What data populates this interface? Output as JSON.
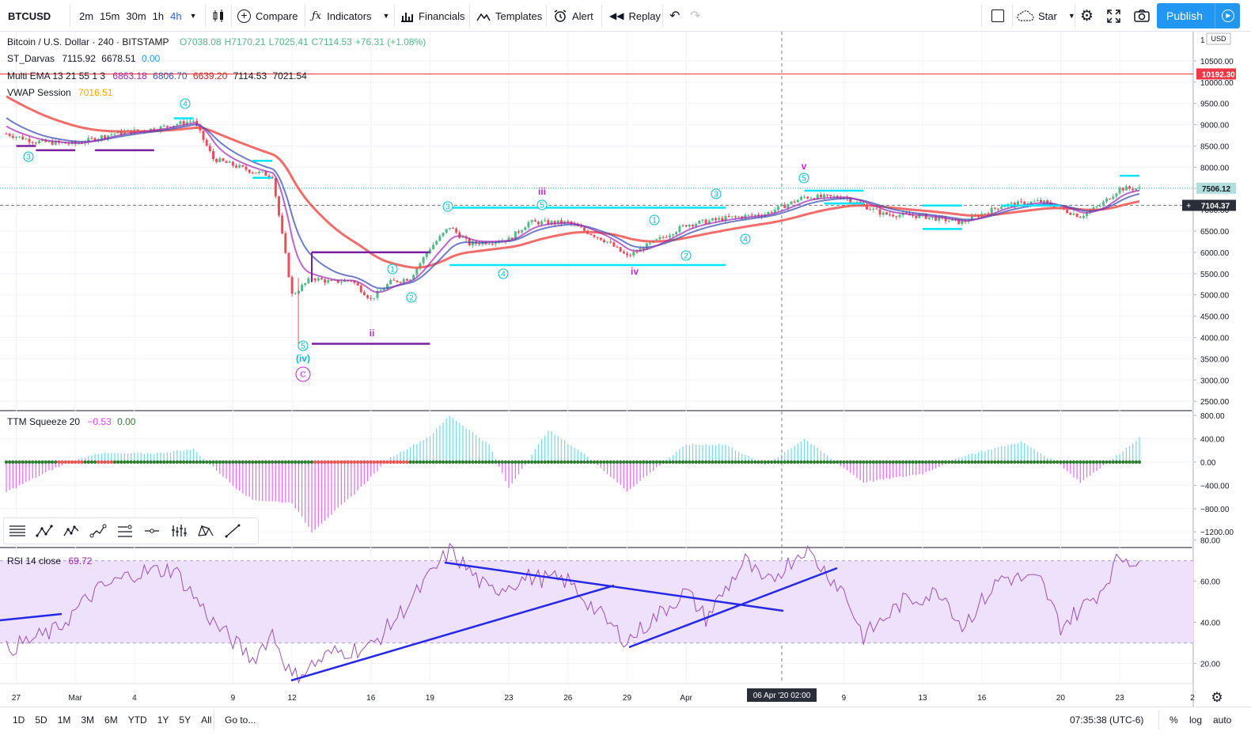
{
  "toolbar": {
    "symbol": "BTCUSD",
    "timeframes": [
      "2m",
      "15m",
      "30m",
      "1h",
      "4h"
    ],
    "active_timeframe": "4h",
    "compare_label": "Compare",
    "indicators_label": "Indicators",
    "financials_label": "Financials",
    "templates_label": "Templates",
    "alert_label": "Alert",
    "replay_label": "Replay",
    "star_label": "Star",
    "publish_label": "Publish"
  },
  "legend": {
    "title": "Bitcoin / U.S. Dollar · 240 · BITSTAMP",
    "open": "O7038.08",
    "high": "H7170.21",
    "low": "L7025.41",
    "close": "C7114.53",
    "change": "+76.31 (+1.08%)",
    "darvas_name": "ST_Darvas",
    "darvas_v1": "7115.92",
    "darvas_v2": "6678.51",
    "darvas_v3": "0.00",
    "ema_name": "Multi EMA 13 21 55 1 3",
    "ema_v1": "6863.18",
    "ema_v2": "6806.70",
    "ema_v3": "6639.20",
    "ema_v4": "7114.53",
    "ema_v5": "7021.54",
    "vwap_name": "VWAP Session",
    "vwap_v": "7016.51",
    "ttm_name": "TTM Squeeze 20",
    "ttm_v1": "−0.53",
    "ttm_v2": "0.00",
    "rsi_name": "RSI 14 close",
    "rsi_v": "69.72"
  },
  "price_axis": {
    "currency": "USD",
    "ticks": [
      "1",
      "10500.00",
      "10000.00",
      "9500.00",
      "9000.00",
      "8500.00",
      "8000.00",
      "7500.00",
      "7000.00",
      "6500.00",
      "6000.00",
      "5500.00",
      "5000.00",
      "4500.00",
      "4000.00",
      "3500.00",
      "3000.00",
      "2500.00"
    ],
    "label_red": "10192.30",
    "label_green": "7506.12",
    "label_current": "7104.37"
  },
  "ttm_axis": {
    "ticks": [
      "800.00",
      "400.00",
      "0.00",
      "−400.00",
      "−800.00",
      "−1200.00"
    ]
  },
  "rsi_axis": {
    "ticks": [
      "80.00",
      "60.00",
      "40.00",
      "20.00"
    ]
  },
  "time_axis": {
    "ticks": [
      "27",
      "Mar",
      "4",
      "9",
      "12",
      "16",
      "19",
      "23",
      "26",
      "29",
      "Apr",
      "9",
      "13",
      "16",
      "20",
      "23",
      "2"
    ],
    "crosshair_label": "06 Apr '20   02:00"
  },
  "wave_labels": {
    "w3a": "3",
    "w4a": "4",
    "wiv": "(iv)",
    "w5a": "5",
    "wC": "C",
    "wii": "ii",
    "w1b": "1",
    "w2b": "2",
    "w3b": "3",
    "w4b": "4",
    "w5b": "5",
    "wiii": "iii",
    "w1c": "1",
    "w2c": "2",
    "w3c": "3",
    "w4c": "4",
    "w5c": "5",
    "wiv2": "iv",
    "wv": "v"
  },
  "bottom": {
    "ranges": [
      "1D",
      "5D",
      "1M",
      "3M",
      "6M",
      "YTD",
      "1Y",
      "5Y",
      "All"
    ],
    "goto_label": "Go to...",
    "clock": "07:35:38 (UTC-6)",
    "pct_label": "%",
    "log_label": "log",
    "auto_label": "auto"
  },
  "colors": {
    "up": "#53b987",
    "down": "#eb4d5c",
    "accent": "#2196f3",
    "ema13": "#9c27b0",
    "ema21": "#3f51b5",
    "ema55": "#ef5350",
    "cyan": "#00e5ff",
    "purple": "#7b1fa2",
    "rsi": "#9c4fb5",
    "rsiband": "#ede1fb",
    "trendline": "#2727e6"
  },
  "chart_data": [
    {
      "type": "candlestick",
      "title": "Bitcoin / U.S. Dollar · 240 · BITSTAMP",
      "ylim": [
        2300,
        10900
      ],
      "x_range": [
        "2020-02-26",
        "2020-04-24"
      ],
      "series": [
        {
          "name": "Price (approx. close path)",
          "points": [
            [
              "2020-02-26",
              8850
            ],
            [
              "2020-02-28",
              8600
            ],
            [
              "2020-03-01",
              8550
            ],
            [
              "2020-03-03",
              8800
            ],
            [
              "2020-03-05",
              8900
            ],
            [
              "2020-03-07",
              9100
            ],
            [
              "2020-03-08",
              8200
            ],
            [
              "2020-03-10",
              7900
            ],
            [
              "2020-03-11",
              7800
            ],
            [
              "2020-03-12",
              5000
            ],
            [
              "2020-03-13",
              5400
            ],
            [
              "2020-03-14",
              5300
            ],
            [
              "2020-03-15",
              5350
            ],
            [
              "2020-03-16",
              4900
            ],
            [
              "2020-03-17",
              5300
            ],
            [
              "2020-03-18",
              5400
            ],
            [
              "2020-03-19",
              6100
            ],
            [
              "2020-03-20",
              6600
            ],
            [
              "2020-03-21",
              6200
            ],
            [
              "2020-03-23",
              6300
            ],
            [
              "2020-03-24",
              6700
            ],
            [
              "2020-03-26",
              6700
            ],
            [
              "2020-03-28",
              6250
            ],
            [
              "2020-03-29",
              5900
            ],
            [
              "2020-03-31",
              6400
            ],
            [
              "2020-04-01",
              6650
            ],
            [
              "2020-04-03",
              6800
            ],
            [
              "2020-04-05",
              6900
            ],
            [
              "2020-04-07",
              7300
            ],
            [
              "2020-04-09",
              7300
            ],
            [
              "2020-04-11",
              6900
            ],
            [
              "2020-04-13",
              6850
            ],
            [
              "2020-04-15",
              6700
            ],
            [
              "2020-04-17",
              7100
            ],
            [
              "2020-04-19",
              7200
            ],
            [
              "2020-04-21",
              6850
            ],
            [
              "2020-04-22",
              7100
            ],
            [
              "2020-04-23",
              7500
            ],
            [
              "2020-04-24",
              7500
            ]
          ]
        },
        {
          "name": "Multi EMA",
          "values": [
            6863.18,
            6806.7,
            6639.2
          ]
        }
      ],
      "horizontal_lines": [
        10192.3,
        7506.12,
        7104.37
      ]
    },
    {
      "type": "bar",
      "title": "TTM Squeeze 20",
      "ylim": [
        -1300,
        850
      ],
      "series": [
        {
          "name": "Momentum (approx.)",
          "points": [
            [
              "2020-02-26",
              -600
            ],
            [
              "2020-02-29",
              -100
            ],
            [
              "2020-03-02",
              150
            ],
            [
              "2020-03-05",
              150
            ],
            [
              "2020-03-07",
              220
            ],
            [
              "2020-03-09",
              -400
            ],
            [
              "2020-03-10",
              -650
            ],
            [
              "2020-03-12",
              -700
            ],
            [
              "2020-03-13",
              -1200
            ],
            [
              "2020-03-15",
              -600
            ],
            [
              "2020-03-17",
              80
            ],
            [
              "2020-03-19",
              450
            ],
            [
              "2020-03-20",
              800
            ],
            [
              "2020-03-22",
              300
            ],
            [
              "2020-03-23",
              -450
            ],
            [
              "2020-03-25",
              550
            ],
            [
              "2020-03-27",
              100
            ],
            [
              "2020-03-29",
              -500
            ],
            [
              "2020-04-01",
              300
            ],
            [
              "2020-04-03",
              300
            ],
            [
              "2020-04-05",
              -50
            ],
            [
              "2020-04-07",
              400
            ],
            [
              "2020-04-10",
              -350
            ],
            [
              "2020-04-13",
              -200
            ],
            [
              "2020-04-15",
              100
            ],
            [
              "2020-04-18",
              350
            ],
            [
              "2020-04-20",
              -50
            ],
            [
              "2020-04-21",
              -350
            ],
            [
              "2020-04-23",
              150
            ],
            [
              "2020-04-24",
              420
            ]
          ]
        }
      ]
    },
    {
      "type": "line",
      "title": "RSI 14 close",
      "ylim": [
        10,
        82
      ],
      "series": [
        {
          "name": "RSI 14 close (approx.)",
          "points": [
            [
              "2020-02-26",
              25
            ],
            [
              "2020-02-29",
              36
            ],
            [
              "2020-03-02",
              55
            ],
            [
              "2020-03-04",
              64
            ],
            [
              "2020-03-06",
              66
            ],
            [
              "2020-03-08",
              40
            ],
            [
              "2020-03-10",
              22
            ],
            [
              "2020-03-11",
              35
            ],
            [
              "2020-03-12",
              13
            ],
            [
              "2020-03-14",
              25
            ],
            [
              "2020-03-16",
              28
            ],
            [
              "2020-03-18",
              50
            ],
            [
              "2020-03-20",
              75
            ],
            [
              "2020-03-22",
              55
            ],
            [
              "2020-03-24",
              62
            ],
            [
              "2020-03-26",
              60
            ],
            [
              "2020-03-28",
              40
            ],
            [
              "2020-03-29",
              31
            ],
            [
              "2020-04-01",
              55
            ],
            [
              "2020-04-02",
              42
            ],
            [
              "2020-04-04",
              70
            ],
            [
              "2020-04-05",
              58
            ],
            [
              "2020-04-07",
              76
            ],
            [
              "2020-04-09",
              55
            ],
            [
              "2020-04-10",
              33
            ],
            [
              "2020-04-12",
              50
            ],
            [
              "2020-04-14",
              55
            ],
            [
              "2020-04-15",
              38
            ],
            [
              "2020-04-17",
              62
            ],
            [
              "2020-04-19",
              60
            ],
            [
              "2020-04-20",
              38
            ],
            [
              "2020-04-22",
              55
            ],
            [
              "2020-04-23",
              72
            ],
            [
              "2020-04-24",
              69.72
            ]
          ]
        }
      ],
      "bands": [
        30,
        70
      ]
    }
  ]
}
